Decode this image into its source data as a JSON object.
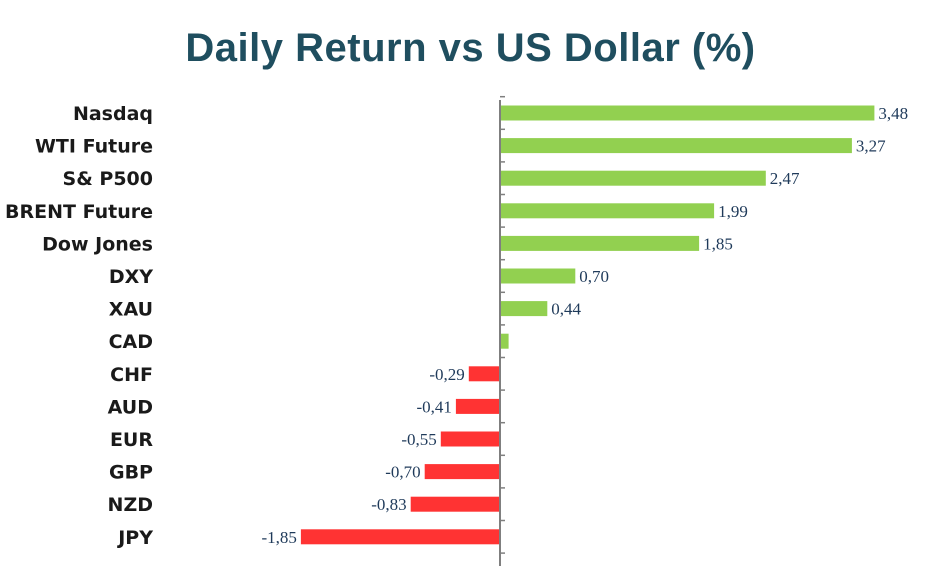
{
  "chart_data": {
    "type": "bar",
    "orientation": "horizontal",
    "title": "Daily Return vs US Dollar (%)",
    "categories": [
      "Nasdaq",
      "WTI Future",
      "S& P500",
      "BRENT Future",
      "Dow Jones",
      "DXY",
      "XAU",
      "CAD",
      "CHF",
      "AUD",
      "EUR",
      "GBP",
      "NZD",
      "JPY"
    ],
    "values": [
      3.48,
      3.27,
      2.47,
      1.99,
      1.85,
      0.7,
      0.44,
      0.08,
      -0.29,
      -0.41,
      -0.55,
      -0.7,
      -0.83,
      -1.85
    ],
    "value_labels": [
      "3,48",
      "3,27",
      "2,47",
      "1,99",
      "1,85",
      "0,70",
      "0,44",
      "",
      "-0,29",
      "-0,41",
      "-0,55",
      "-0,70",
      "-0,83",
      "-1,85"
    ],
    "xlim": [
      -1.85,
      3.48
    ],
    "grid": false,
    "legend": "none",
    "colors": {
      "positive": "#92d050",
      "negative": "#ff3333",
      "axis": "#7f7f7f",
      "title": "#1f4e5f"
    }
  }
}
